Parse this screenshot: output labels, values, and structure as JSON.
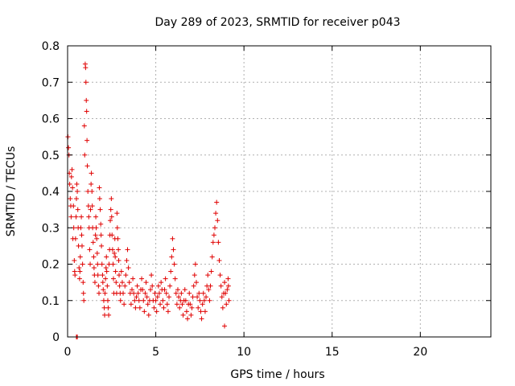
{
  "chart_data": {
    "type": "scatter",
    "title": "Day 289 of 2023, SRMTID for receiver p043",
    "xlabel": "GPS time / hours",
    "ylabel": "SRMTID / TECUs",
    "xlim": [
      0,
      24
    ],
    "ylim": [
      0,
      0.8
    ],
    "xticks": [
      0,
      5,
      10,
      15,
      20
    ],
    "xtick_labels": [
      "0",
      "5",
      "10",
      "15",
      "20"
    ],
    "yticks": [
      0,
      0.1,
      0.2,
      0.3,
      0.4,
      0.5,
      0.6,
      0.7,
      0.8
    ],
    "ytick_labels": [
      "0",
      "0.1",
      "0.2",
      "0.3",
      "0.4",
      "0.5",
      "0.6",
      "0.7",
      "0.8"
    ],
    "grid": true,
    "marker": "+",
    "color": "#e00000",
    "series": [
      {
        "name": "p043",
        "points": [
          [
            0.02,
            0.55
          ],
          [
            0.05,
            0.52
          ],
          [
            0.08,
            0.5
          ],
          [
            0.1,
            0.45
          ],
          [
            0.12,
            0.42
          ],
          [
            0.15,
            0.38
          ],
          [
            0.18,
            0.36
          ],
          [
            0.2,
            0.33
          ],
          [
            0.22,
            0.44
          ],
          [
            0.25,
            0.46
          ],
          [
            0.28,
            0.41
          ],
          [
            0.3,
            0.27
          ],
          [
            0.33,
            0.36
          ],
          [
            0.35,
            0.3
          ],
          [
            0.38,
            0.21
          ],
          [
            0.4,
            0.18
          ],
          [
            0.42,
            0.17
          ],
          [
            0.45,
            0.27
          ],
          [
            0.48,
            0.33
          ],
          [
            0.5,
            0.38
          ],
          [
            0.52,
            0.42
          ],
          [
            0.55,
            0.4
          ],
          [
            0.58,
            0.35
          ],
          [
            0.6,
            0.3
          ],
          [
            0.62,
            0.25
          ],
          [
            0.65,
            0.19
          ],
          [
            0.68,
            0.16
          ],
          [
            0.7,
            0.18
          ],
          [
            0.72,
            0.22
          ],
          [
            0.75,
            0.3
          ],
          [
            0.78,
            0.33
          ],
          [
            0.8,
            0.28
          ],
          [
            0.82,
            0.25
          ],
          [
            0.85,
            0.2
          ],
          [
            0.88,
            0.15
          ],
          [
            0.9,
            0.12
          ],
          [
            0.92,
            0.1
          ],
          [
            0.95,
            0.58
          ],
          [
            0.97,
            0.5
          ],
          [
            1.0,
            0.75
          ],
          [
            1.02,
            0.74
          ],
          [
            1.04,
            0.7
          ],
          [
            1.06,
            0.65
          ],
          [
            1.08,
            0.62
          ],
          [
            1.1,
            0.54
          ],
          [
            1.12,
            0.47
          ],
          [
            1.15,
            0.4
          ],
          [
            1.18,
            0.36
          ],
          [
            1.2,
            0.33
          ],
          [
            1.22,
            0.3
          ],
          [
            1.25,
            0.24
          ],
          [
            1.28,
            0.2
          ],
          [
            1.3,
            0.35
          ],
          [
            1.33,
            0.42
          ],
          [
            1.35,
            0.45
          ],
          [
            1.38,
            0.4
          ],
          [
            1.4,
            0.36
          ],
          [
            1.42,
            0.3
          ],
          [
            1.45,
            0.26
          ],
          [
            1.48,
            0.22
          ],
          [
            1.5,
            0.19
          ],
          [
            1.52,
            0.17
          ],
          [
            1.55,
            0.15
          ],
          [
            1.58,
            0.28
          ],
          [
            1.6,
            0.33
          ],
          [
            1.62,
            0.3
          ],
          [
            1.65,
            0.27
          ],
          [
            1.68,
            0.23
          ],
          [
            1.7,
            0.2
          ],
          [
            1.72,
            0.17
          ],
          [
            1.75,
            0.14
          ],
          [
            1.78,
            0.12
          ],
          [
            1.8,
            0.41
          ],
          [
            1.82,
            0.38
          ],
          [
            1.85,
            0.35
          ],
          [
            1.88,
            0.31
          ],
          [
            1.9,
            0.28
          ],
          [
            1.92,
            0.25
          ],
          [
            1.95,
            0.2
          ],
          [
            1.98,
            0.17
          ],
          [
            2.0,
            0.15
          ],
          [
            2.02,
            0.13
          ],
          [
            2.05,
            0.1
          ],
          [
            2.08,
            0.08
          ],
          [
            2.1,
            0.06
          ],
          [
            2.12,
            0.12
          ],
          [
            2.15,
            0.16
          ],
          [
            2.18,
            0.19
          ],
          [
            2.2,
            0.22
          ],
          [
            2.22,
            0.18
          ],
          [
            2.25,
            0.14
          ],
          [
            2.28,
            0.1
          ],
          [
            2.3,
            0.08
          ],
          [
            2.33,
            0.06
          ],
          [
            2.35,
            0.2
          ],
          [
            2.38,
            0.24
          ],
          [
            2.4,
            0.28
          ],
          [
            2.42,
            0.32
          ],
          [
            2.45,
            0.35
          ],
          [
            2.48,
            0.38
          ],
          [
            2.5,
            0.33
          ],
          [
            2.52,
            0.28
          ],
          [
            2.55,
            0.24
          ],
          [
            2.58,
            0.2
          ],
          [
            2.6,
            0.16
          ],
          [
            2.62,
            0.12
          ],
          [
            2.65,
            0.23
          ],
          [
            2.68,
            0.27
          ],
          [
            2.7,
            0.22
          ],
          [
            2.72,
            0.18
          ],
          [
            2.75,
            0.15
          ],
          [
            2.78,
            0.12
          ],
          [
            2.8,
            0.34
          ],
          [
            2.82,
            0.3
          ],
          [
            2.85,
            0.27
          ],
          [
            2.88,
            0.24
          ],
          [
            2.9,
            0.21
          ],
          [
            2.92,
            0.17
          ],
          [
            2.95,
            0.14
          ],
          [
            2.98,
            0.12
          ],
          [
            3.0,
            0.1
          ],
          [
            3.05,
            0.18
          ],
          [
            3.1,
            0.15
          ],
          [
            3.15,
            0.12
          ],
          [
            3.2,
            0.09
          ],
          [
            3.25,
            0.14
          ],
          [
            3.3,
            0.17
          ],
          [
            3.35,
            0.21
          ],
          [
            3.4,
            0.24
          ],
          [
            3.45,
            0.19
          ],
          [
            3.5,
            0.15
          ],
          [
            3.55,
            0.12
          ],
          [
            3.6,
            0.09
          ],
          [
            3.65,
            0.13
          ],
          [
            3.7,
            0.16
          ],
          [
            3.75,
            0.12
          ],
          [
            3.8,
            0.1
          ],
          [
            3.85,
            0.08
          ],
          [
            3.9,
            0.11
          ],
          [
            3.95,
            0.14
          ],
          [
            4.0,
            0.12
          ],
          [
            4.05,
            0.1
          ],
          [
            4.1,
            0.08
          ],
          [
            4.15,
            0.13
          ],
          [
            4.2,
            0.16
          ],
          [
            4.25,
            0.13
          ],
          [
            4.3,
            0.1
          ],
          [
            4.35,
            0.07
          ],
          [
            4.4,
            0.12
          ],
          [
            4.45,
            0.15
          ],
          [
            4.5,
            0.11
          ],
          [
            4.55,
            0.09
          ],
          [
            4.6,
            0.06
          ],
          [
            4.65,
            0.1
          ],
          [
            4.7,
            0.13
          ],
          [
            4.75,
            0.17
          ],
          [
            4.8,
            0.14
          ],
          [
            4.85,
            0.1
          ],
          [
            4.9,
            0.08
          ],
          [
            4.95,
            0.12
          ],
          [
            5.0,
            0.1
          ],
          [
            5.05,
            0.07
          ],
          [
            5.1,
            0.11
          ],
          [
            5.15,
            0.14
          ],
          [
            5.2,
            0.12
          ],
          [
            5.25,
            0.09
          ],
          [
            5.3,
            0.15
          ],
          [
            5.35,
            0.13
          ],
          [
            5.4,
            0.1
          ],
          [
            5.45,
            0.08
          ],
          [
            5.5,
            0.13
          ],
          [
            5.55,
            0.16
          ],
          [
            5.6,
            0.12
          ],
          [
            5.65,
            0.09
          ],
          [
            5.7,
            0.07
          ],
          [
            5.75,
            0.11
          ],
          [
            5.8,
            0.14
          ],
          [
            5.85,
            0.18
          ],
          [
            5.9,
            0.22
          ],
          [
            5.95,
            0.27
          ],
          [
            6.0,
            0.24
          ],
          [
            6.05,
            0.2
          ],
          [
            6.1,
            0.16
          ],
          [
            6.15,
            0.12
          ],
          [
            6.2,
            0.09
          ],
          [
            6.25,
            0.13
          ],
          [
            6.3,
            0.11
          ],
          [
            6.35,
            0.08
          ],
          [
            6.4,
            0.1
          ],
          [
            6.45,
            0.12
          ],
          [
            6.5,
            0.09
          ],
          [
            6.55,
            0.06
          ],
          [
            6.6,
            0.1
          ],
          [
            6.65,
            0.13
          ],
          [
            6.7,
            0.1
          ],
          [
            6.75,
            0.07
          ],
          [
            6.8,
            0.05
          ],
          [
            6.85,
            0.09
          ],
          [
            6.9,
            0.12
          ],
          [
            6.95,
            0.09
          ],
          [
            7.0,
            0.06
          ],
          [
            7.05,
            0.08
          ],
          [
            7.1,
            0.11
          ],
          [
            7.15,
            0.14
          ],
          [
            7.2,
            0.17
          ],
          [
            7.25,
            0.2
          ],
          [
            7.3,
            0.15
          ],
          [
            7.35,
            0.11
          ],
          [
            7.4,
            0.08
          ],
          [
            7.45,
            0.12
          ],
          [
            7.5,
            0.1
          ],
          [
            7.55,
            0.07
          ],
          [
            7.6,
            0.05
          ],
          [
            7.65,
            0.09
          ],
          [
            7.7,
            0.12
          ],
          [
            7.75,
            0.1
          ],
          [
            7.8,
            0.07
          ],
          [
            7.85,
            0.11
          ],
          [
            7.9,
            0.14
          ],
          [
            7.95,
            0.17
          ],
          [
            8.0,
            0.13
          ],
          [
            8.05,
            0.1
          ],
          [
            8.1,
            0.14
          ],
          [
            8.15,
            0.18
          ],
          [
            8.2,
            0.22
          ],
          [
            8.25,
            0.26
          ],
          [
            8.3,
            0.28
          ],
          [
            8.35,
            0.3
          ],
          [
            8.4,
            0.34
          ],
          [
            8.45,
            0.37
          ],
          [
            8.5,
            0.32
          ],
          [
            8.55,
            0.26
          ],
          [
            8.6,
            0.21
          ],
          [
            8.65,
            0.17
          ],
          [
            8.7,
            0.14
          ],
          [
            8.75,
            0.11
          ],
          [
            8.8,
            0.08
          ],
          [
            8.85,
            0.12
          ],
          [
            8.9,
            0.15
          ],
          [
            8.95,
            0.12
          ],
          [
            9.0,
            0.09
          ],
          [
            9.05,
            0.13
          ],
          [
            9.1,
            0.16
          ],
          [
            9.12,
            0.14
          ],
          [
            9.15,
            0.1
          ],
          [
            8.9,
            0.03
          ],
          [
            0.55,
            0.0
          ],
          [
            0.5,
            0.0
          ]
        ]
      }
    ]
  }
}
